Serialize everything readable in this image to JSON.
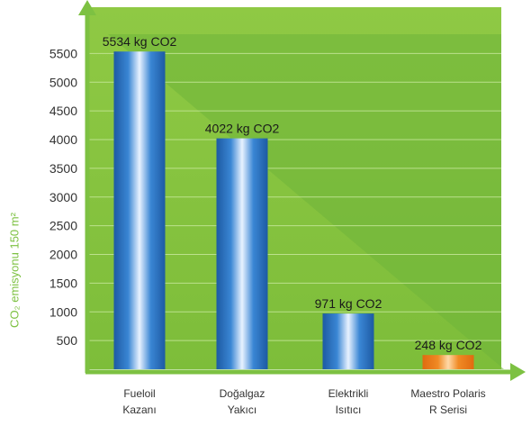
{
  "chart_data": {
    "type": "bar",
    "categories": [
      {
        "line1": "Fueloil",
        "line2": "Kazanı"
      },
      {
        "line1": "Doğalgaz",
        "line2": "Yakıcı"
      },
      {
        "line1": "Elektrikli",
        "line2": "Isıtıcı"
      },
      {
        "line1": "Maestro Polaris",
        "line2": "R Serisi"
      }
    ],
    "values": [
      5534,
      4022,
      971,
      248
    ],
    "data_labels": [
      "5534 kg CO2",
      "4022 kg CO2",
      "971 kg CO2",
      "248 kg CO2"
    ],
    "ylabel": "CO₂ emisyonu 150 m²",
    "yticks": [
      500,
      1000,
      1500,
      2000,
      2500,
      3000,
      3500,
      4000,
      4500,
      5000,
      5500
    ],
    "ylim": [
      0,
      6000
    ],
    "grid": true,
    "colors": {
      "background": "#8cc63f",
      "background_shade": "#6ab23a",
      "axis": "#7dc142",
      "bar": "#2f74c0",
      "bar_highlight": "#e8f2ff",
      "last_bar": "#f08a24",
      "last_bar_highlight": "#ffd9a8"
    }
  }
}
